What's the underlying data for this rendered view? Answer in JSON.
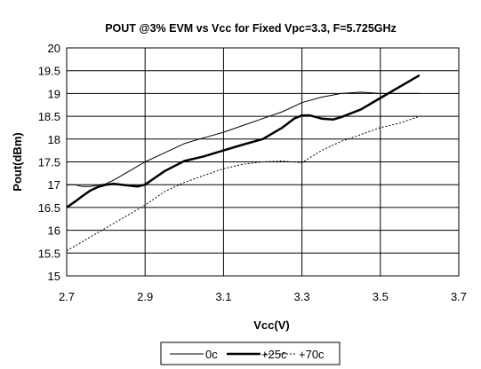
{
  "chart_data": {
    "type": "line",
    "title": "POUT @3% EVM vs Vcc for Fixed Vpc=3.3, F=5.725GHz",
    "xlabel": "Vcc(V)",
    "ylabel": "Pout(dBm)",
    "xlim": [
      2.7,
      3.7
    ],
    "ylim": [
      15,
      20
    ],
    "xticks": [
      "2.7",
      "2.9",
      "3.1",
      "3.3",
      "3.5",
      "3.7"
    ],
    "yticks": [
      "15",
      "15.5",
      "16",
      "16.5",
      "17",
      "17.5",
      "18",
      "18.5",
      "19",
      "19.5",
      "20"
    ],
    "grid": "horizontal and vertical",
    "legend_position": "bottom",
    "series": [
      {
        "name": "0c",
        "style": "thin-solid",
        "color": "#000000",
        "points": [
          [
            2.7,
            17.0
          ],
          [
            2.72,
            17.0
          ],
          [
            2.74,
            16.96
          ],
          [
            2.76,
            16.96
          ],
          [
            2.78,
            16.99
          ],
          [
            2.8,
            17.02
          ],
          [
            2.82,
            17.1
          ],
          [
            2.84,
            17.2
          ],
          [
            2.86,
            17.3
          ],
          [
            2.88,
            17.4
          ],
          [
            2.9,
            17.5
          ],
          [
            2.95,
            17.7
          ],
          [
            3.0,
            17.9
          ],
          [
            3.05,
            18.03
          ],
          [
            3.1,
            18.15
          ],
          [
            3.15,
            18.3
          ],
          [
            3.2,
            18.45
          ],
          [
            3.25,
            18.6
          ],
          [
            3.3,
            18.8
          ],
          [
            3.35,
            18.92
          ],
          [
            3.4,
            19.0
          ],
          [
            3.45,
            19.03
          ],
          [
            3.5,
            19.0
          ],
          [
            3.55,
            19.0
          ],
          [
            3.6,
            19.0
          ]
        ]
      },
      {
        "name": "+25c",
        "style": "thick-solid",
        "color": "#000000",
        "points": [
          [
            2.7,
            16.5
          ],
          [
            2.72,
            16.62
          ],
          [
            2.74,
            16.75
          ],
          [
            2.76,
            16.87
          ],
          [
            2.78,
            16.95
          ],
          [
            2.8,
            17.0
          ],
          [
            2.82,
            17.02
          ],
          [
            2.84,
            17.0
          ],
          [
            2.86,
            16.98
          ],
          [
            2.88,
            16.96
          ],
          [
            2.9,
            17.0
          ],
          [
            2.92,
            17.12
          ],
          [
            2.95,
            17.3
          ],
          [
            3.0,
            17.52
          ],
          [
            3.05,
            17.62
          ],
          [
            3.1,
            17.75
          ],
          [
            3.15,
            17.88
          ],
          [
            3.2,
            18.0
          ],
          [
            3.25,
            18.25
          ],
          [
            3.28,
            18.45
          ],
          [
            3.3,
            18.52
          ],
          [
            3.32,
            18.52
          ],
          [
            3.35,
            18.45
          ],
          [
            3.38,
            18.43
          ],
          [
            3.4,
            18.48
          ],
          [
            3.45,
            18.65
          ],
          [
            3.5,
            18.9
          ],
          [
            3.55,
            19.15
          ],
          [
            3.6,
            19.4
          ]
        ]
      },
      {
        "name": "+70c",
        "style": "dotted",
        "color": "#000000",
        "points": [
          [
            2.7,
            15.55
          ],
          [
            2.75,
            15.8
          ],
          [
            2.8,
            16.05
          ],
          [
            2.85,
            16.3
          ],
          [
            2.9,
            16.55
          ],
          [
            2.95,
            16.85
          ],
          [
            3.0,
            17.05
          ],
          [
            3.05,
            17.2
          ],
          [
            3.1,
            17.35
          ],
          [
            3.15,
            17.45
          ],
          [
            3.2,
            17.5
          ],
          [
            3.25,
            17.52
          ],
          [
            3.3,
            17.48
          ],
          [
            3.35,
            17.75
          ],
          [
            3.4,
            17.95
          ],
          [
            3.45,
            18.1
          ],
          [
            3.5,
            18.25
          ],
          [
            3.55,
            18.35
          ],
          [
            3.6,
            18.5
          ]
        ]
      }
    ]
  }
}
